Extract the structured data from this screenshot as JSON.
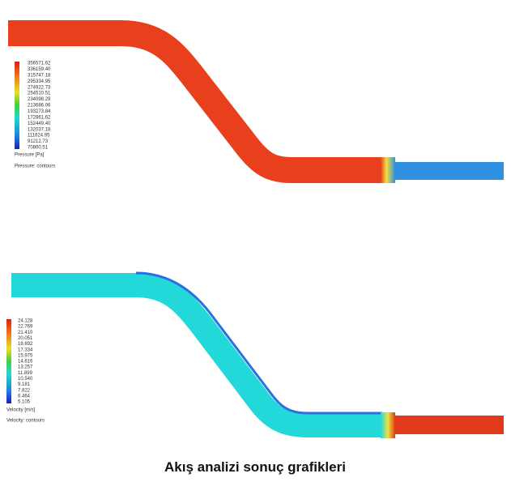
{
  "panels": [
    {
      "legend_title": "Pressure [Pa]",
      "contour_label": "Pressure: contours",
      "legend_values": [
        "356571.62",
        "336159.40",
        "315747.18",
        "295334.95",
        "274922.73",
        "254510.51",
        "234098.29",
        "213686.06",
        "193273.84",
        "172861.62",
        "152449.40",
        "132037.18",
        "111624.95",
        "91212.73",
        "70800.51"
      ]
    },
    {
      "legend_title": "Velocity [m/s]",
      "contour_label": "Velocity: contours",
      "legend_values": [
        "24.128",
        "22.769",
        "21.410",
        "20.051",
        "18.692",
        "17.334",
        "15.975",
        "14.616",
        "13.257",
        "11.899",
        "10.540",
        "9.181",
        "7.822",
        "6.464",
        "5.105"
      ]
    }
  ],
  "caption": "Akış analizi sonuç grafikleri"
}
